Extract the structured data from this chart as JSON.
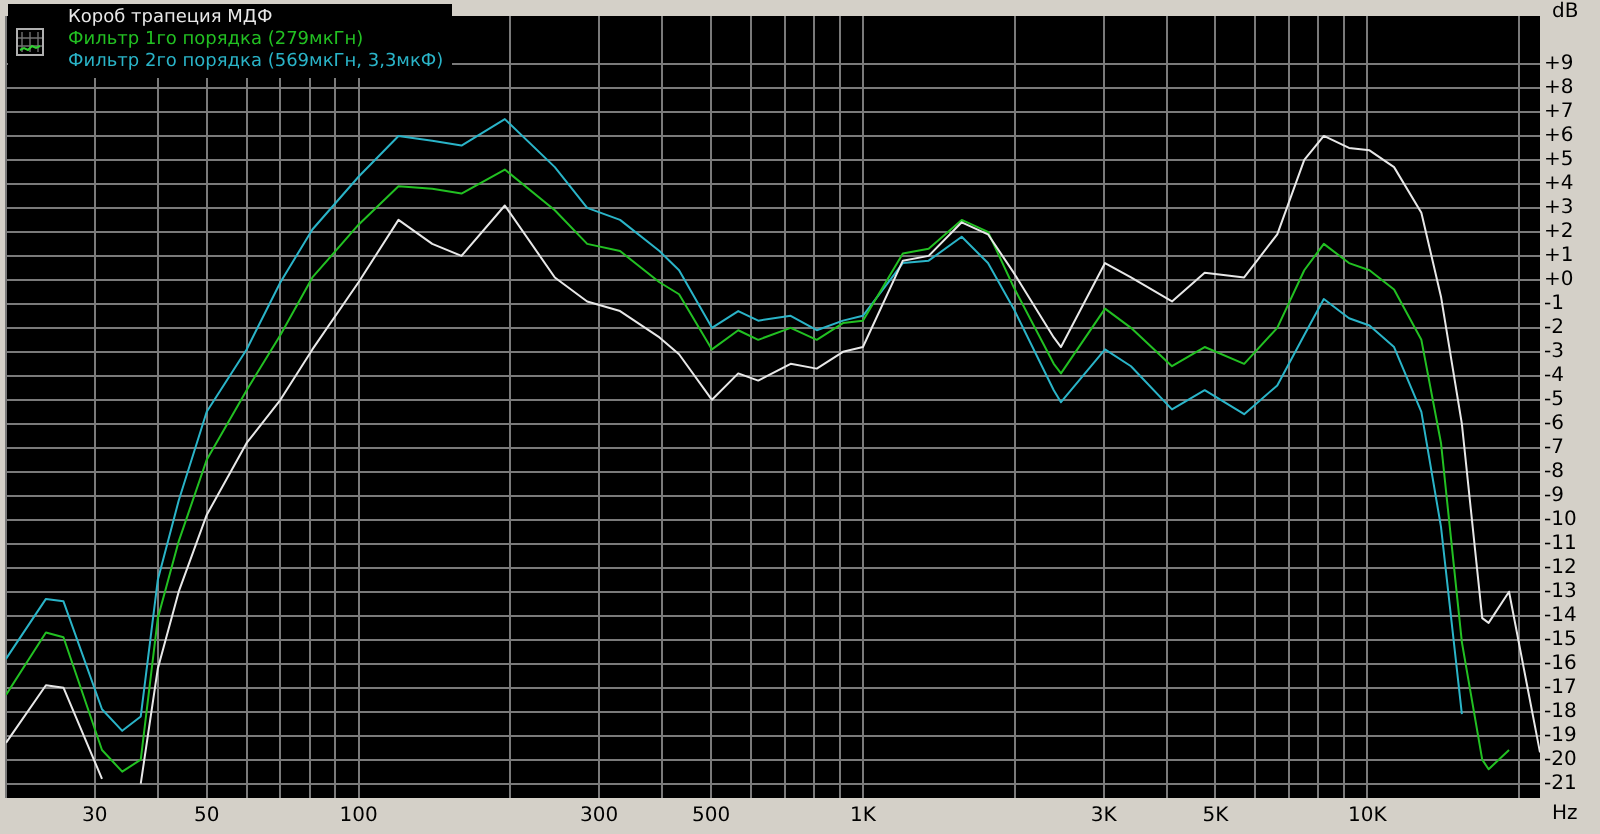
{
  "chart_data": {
    "type": "line",
    "xlabel": "Hz",
    "ylabel": "dB",
    "log": "x",
    "grid": true,
    "legend": "top left",
    "marker": "none",
    "line_style": "solid",
    "x": [
      20,
      24,
      26,
      31,
      34,
      37,
      40,
      44,
      50,
      60,
      70,
      81,
      100,
      120,
      140,
      160,
      195,
      245,
      284,
      330,
      395,
      432,
      502,
      566,
      620,
      719,
      810,
      913,
      1000,
      1200,
      1350,
      1570,
      1770,
      1990,
      2390,
      2470,
      3020,
      3400,
      4100,
      4760,
      5700,
      6630,
      7500,
      8200,
      9200,
      10100,
      11300,
      12800,
      14000,
      15400,
      16900,
      17400,
      19100,
      22000
    ],
    "xlim": [
      20,
      22000
    ],
    "xticks": [
      {
        "value": 20,
        "label": null
      },
      {
        "value": 30,
        "label": "30"
      },
      {
        "value": 40,
        "label": null
      },
      {
        "value": 50,
        "label": "50"
      },
      {
        "value": 60,
        "label": null
      },
      {
        "value": 70,
        "label": null
      },
      {
        "value": 80,
        "label": null
      },
      {
        "value": 90,
        "label": null
      },
      {
        "value": 100,
        "label": "100"
      },
      {
        "value": 200,
        "label": null
      },
      {
        "value": 300,
        "label": "300"
      },
      {
        "value": 400,
        "label": null
      },
      {
        "value": 500,
        "label": "500"
      },
      {
        "value": 600,
        "label": null
      },
      {
        "value": 700,
        "label": null
      },
      {
        "value": 800,
        "label": null
      },
      {
        "value": 900,
        "label": null
      },
      {
        "value": 1000,
        "label": "1K"
      },
      {
        "value": 2000,
        "label": null
      },
      {
        "value": 3000,
        "label": "3K"
      },
      {
        "value": 4000,
        "label": null
      },
      {
        "value": 5000,
        "label": "5K"
      },
      {
        "value": 6000,
        "label": null
      },
      {
        "value": 7000,
        "label": null
      },
      {
        "value": 8000,
        "label": null
      },
      {
        "value": 9000,
        "label": null
      },
      {
        "value": 10000,
        "label": "10K"
      },
      {
        "value": 20000,
        "label": null
      }
    ],
    "ylim": [
      -21.6,
      11
    ],
    "yticks": [
      -21,
      -20,
      -19,
      -18,
      -17,
      -16,
      -15,
      -14,
      -13,
      -12,
      -11,
      -10,
      -9,
      -8,
      -7,
      -6,
      -5,
      -4,
      -3,
      -2,
      -1,
      {
        "value": 0,
        "label": "+0"
      },
      {
        "value": 1,
        "label": "+1"
      },
      {
        "value": 2,
        "label": "+2"
      },
      {
        "value": 3,
        "label": "+3"
      },
      {
        "value": 4,
        "label": "+4"
      },
      {
        "value": 5,
        "label": "+5"
      },
      {
        "value": 6,
        "label": "+6"
      },
      {
        "value": 7,
        "label": "+7"
      },
      {
        "value": 8,
        "label": "+8"
      },
      {
        "value": 9,
        "label": "+9"
      }
    ],
    "series": [
      {
        "name": "Короб трапеция МДФ",
        "color": "#e8e8e8",
        "values": [
          -19.3,
          -16.9,
          -17.0,
          -20.8,
          null,
          -21.0,
          -16.2,
          -13.0,
          -9.8,
          -6.8,
          -5.0,
          -2.9,
          -0.1,
          2.5,
          1.5,
          1.0,
          3.1,
          0.1,
          -0.9,
          -1.3,
          -2.4,
          -3.1,
          -5.0,
          -3.9,
          -4.2,
          -3.5,
          -3.7,
          -3.0,
          -2.8,
          0.8,
          1.0,
          2.4,
          1.9,
          0.3,
          -2.4,
          -2.8,
          0.7,
          0.1,
          -0.9,
          0.3,
          0.1,
          1.9,
          5.0,
          6.0,
          5.5,
          5.4,
          4.7,
          2.8,
          -0.7,
          -6.0,
          -14.1,
          -14.3,
          -13.0,
          -19.7
        ]
      },
      {
        "name": "Фильтр 1го порядка (279мкГн)",
        "color": "#22c022",
        "values": [
          -17.3,
          -14.7,
          -14.9,
          -19.6,
          -20.5,
          -20.0,
          -14.1,
          -10.9,
          -7.5,
          -4.6,
          -2.3,
          0.1,
          2.3,
          3.9,
          3.8,
          3.6,
          4.6,
          2.9,
          1.5,
          1.2,
          -0.1,
          -0.6,
          -2.9,
          -2.1,
          -2.5,
          -2.0,
          -2.5,
          -1.8,
          -1.7,
          1.1,
          1.3,
          2.5,
          2.0,
          -0.3,
          -3.5,
          -3.9,
          -1.2,
          -2.0,
          -3.6,
          -2.8,
          -3.5,
          -2.0,
          0.4,
          1.5,
          0.7,
          0.4,
          -0.4,
          -2.5,
          -6.8,
          -15.1,
          -20.0,
          -20.4,
          -19.6,
          null
        ]
      },
      {
        "name": "Фильтр 2го порядка (569мкГн, 3,3мкФ)",
        "color": "#2ab4c8",
        "values": [
          -15.8,
          -13.3,
          -13.4,
          -17.9,
          -18.8,
          -18.2,
          -12.5,
          -9.2,
          -5.5,
          -2.9,
          -0.1,
          2.1,
          4.3,
          6.0,
          5.8,
          5.6,
          6.7,
          4.7,
          3.0,
          2.5,
          1.2,
          0.4,
          -2.0,
          -1.3,
          -1.7,
          -1.5,
          -2.1,
          -1.7,
          -1.5,
          0.7,
          0.8,
          1.8,
          0.7,
          -1.2,
          -4.6,
          -5.1,
          -2.9,
          -3.6,
          -5.4,
          -4.6,
          -5.6,
          -4.4,
          -2.3,
          -0.8,
          -1.6,
          -1.9,
          -2.8,
          -5.5,
          -10.3,
          -18.1,
          null,
          null,
          null,
          null
        ]
      }
    ]
  }
}
